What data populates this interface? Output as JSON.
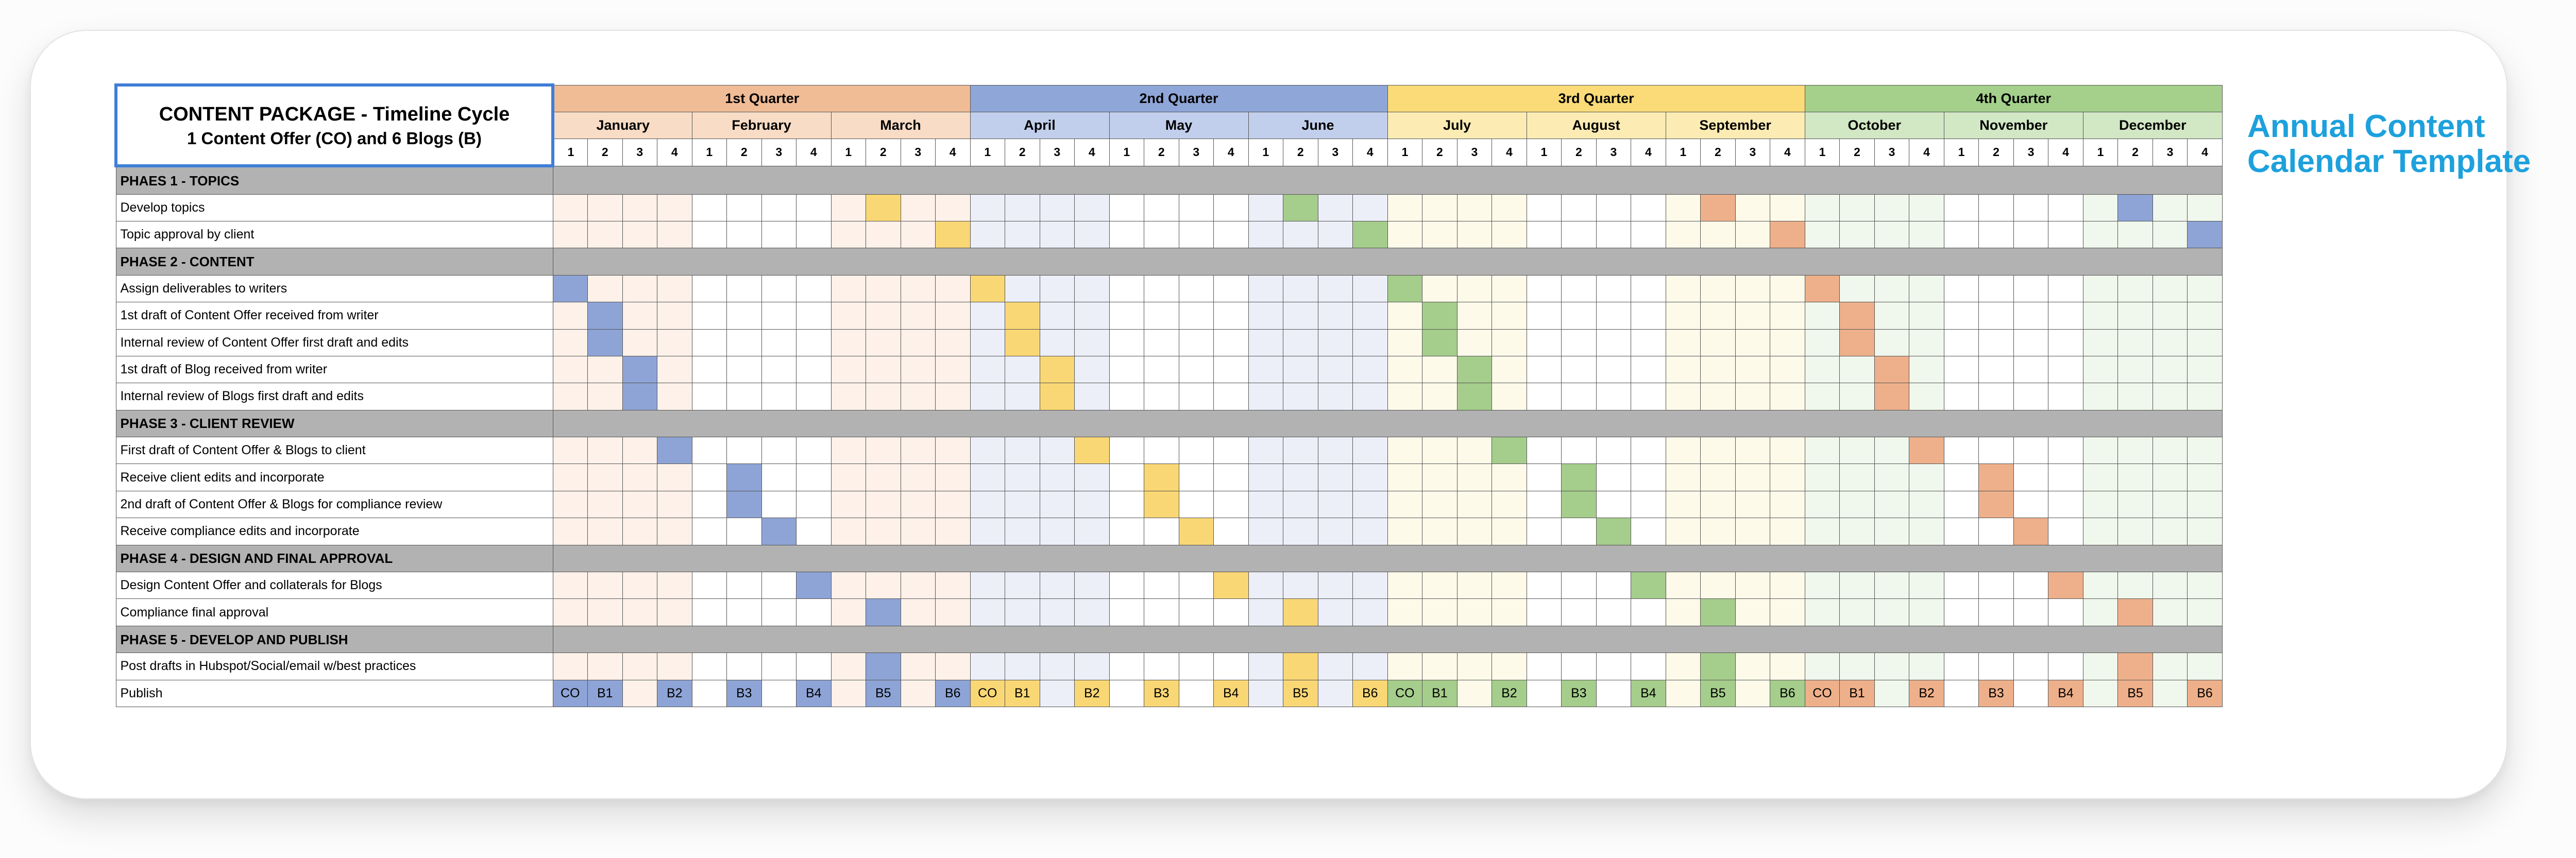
{
  "title_block": {
    "line1": "CONTENT PACKAGE - Timeline Cycle",
    "line2": "1 Content Offer (CO) and 6 Blogs (B)"
  },
  "side_title": {
    "line1": "Annual Content",
    "line2": "Calendar Template"
  },
  "week_labels": [
    "1",
    "2",
    "3",
    "4"
  ],
  "quarters": [
    {
      "label": "1st Quarter",
      "hdr_color": "#f0bc96",
      "month_color": "#f8dcc6",
      "band_color": "#fdf1e9",
      "accent": "#8ea4d6"
    },
    {
      "label": "2nd Quarter",
      "hdr_color": "#8fa6d8",
      "month_color": "#c2cfec",
      "band_color": "#eceff8",
      "accent": "#f9d774"
    },
    {
      "label": "3rd Quarter",
      "hdr_color": "#fadb78",
      "month_color": "#fcecb4",
      "band_color": "#fefaea",
      "accent": "#a5cd8b"
    },
    {
      "label": "4th Quarter",
      "hdr_color": "#a4d08c",
      "month_color": "#d2e7c4",
      "band_color": "#f0f7ec",
      "accent": "#eeb08a"
    }
  ],
  "months": [
    "January",
    "February",
    "March",
    "April",
    "May",
    "June",
    "July",
    "August",
    "September",
    "October",
    "November",
    "December"
  ],
  "rows": [
    {
      "type": "phase",
      "label": "PHAES 1 - TOPICS"
    },
    {
      "type": "task",
      "label": "Develop topics",
      "cells": [
        {
          "col": 9,
          "c": "#f9d774"
        },
        {
          "col": 21,
          "c": "#a5cd8b"
        },
        {
          "col": 33,
          "c": "#eeb08a"
        },
        {
          "col": 45,
          "c": "#8ea4d6"
        }
      ]
    },
    {
      "type": "task",
      "label": "Topic approval by client",
      "cells": [
        {
          "col": 11,
          "c": "#f9d774"
        },
        {
          "col": 23,
          "c": "#a5cd8b"
        },
        {
          "col": 35,
          "c": "#eeb08a"
        },
        {
          "col": 47,
          "c": "#8ea4d6"
        }
      ]
    },
    {
      "type": "phase",
      "label": "PHASE 2 - CONTENT"
    },
    {
      "type": "task",
      "label": "Assign deliverables to writers",
      "cells": [
        {
          "col": 0,
          "c": "#8ea4d6"
        },
        {
          "col": 12,
          "c": "#f9d774"
        },
        {
          "col": 24,
          "c": "#a5cd8b"
        },
        {
          "col": 36,
          "c": "#eeb08a"
        }
      ]
    },
    {
      "type": "task",
      "label": "1st draft of Content Offer received from writer",
      "cells": [
        {
          "col": 1,
          "c": "#8ea4d6"
        },
        {
          "col": 13,
          "c": "#f9d774"
        },
        {
          "col": 25,
          "c": "#a5cd8b"
        },
        {
          "col": 37,
          "c": "#eeb08a"
        }
      ]
    },
    {
      "type": "task",
      "label": "Internal review of Content Offer first draft and edits",
      "cells": [
        {
          "col": 1,
          "c": "#8ea4d6"
        },
        {
          "col": 13,
          "c": "#f9d774"
        },
        {
          "col": 25,
          "c": "#a5cd8b"
        },
        {
          "col": 37,
          "c": "#eeb08a"
        }
      ]
    },
    {
      "type": "task",
      "label": "1st draft of Blog received from writer",
      "cells": [
        {
          "col": 2,
          "c": "#8ea4d6"
        },
        {
          "col": 14,
          "c": "#f9d774"
        },
        {
          "col": 26,
          "c": "#a5cd8b"
        },
        {
          "col": 38,
          "c": "#eeb08a"
        }
      ]
    },
    {
      "type": "task",
      "label": "Internal review of Blogs first draft and edits",
      "cells": [
        {
          "col": 2,
          "c": "#8ea4d6"
        },
        {
          "col": 14,
          "c": "#f9d774"
        },
        {
          "col": 26,
          "c": "#a5cd8b"
        },
        {
          "col": 38,
          "c": "#eeb08a"
        }
      ]
    },
    {
      "type": "phase",
      "label": "PHASE 3 - CLIENT REVIEW"
    },
    {
      "type": "task",
      "label": "First draft of Content Offer & Blogs to client",
      "cells": [
        {
          "col": 3,
          "c": "#8ea4d6"
        },
        {
          "col": 15,
          "c": "#f9d774"
        },
        {
          "col": 27,
          "c": "#a5cd8b"
        },
        {
          "col": 39,
          "c": "#eeb08a"
        }
      ]
    },
    {
      "type": "task",
      "label": "Receive client edits and incorporate",
      "cells": [
        {
          "col": 5,
          "c": "#8ea4d6"
        },
        {
          "col": 17,
          "c": "#f9d774"
        },
        {
          "col": 29,
          "c": "#a5cd8b"
        },
        {
          "col": 41,
          "c": "#eeb08a"
        }
      ]
    },
    {
      "type": "task",
      "label": "2nd draft of Content Offer & Blogs for compliance review",
      "cells": [
        {
          "col": 5,
          "c": "#8ea4d6"
        },
        {
          "col": 17,
          "c": "#f9d774"
        },
        {
          "col": 29,
          "c": "#a5cd8b"
        },
        {
          "col": 41,
          "c": "#eeb08a"
        }
      ]
    },
    {
      "type": "task",
      "label": "Receive compliance edits and incorporate",
      "cells": [
        {
          "col": 6,
          "c": "#8ea4d6"
        },
        {
          "col": 18,
          "c": "#f9d774"
        },
        {
          "col": 30,
          "c": "#a5cd8b"
        },
        {
          "col": 42,
          "c": "#eeb08a"
        }
      ]
    },
    {
      "type": "phase",
      "label": "PHASE 4 - DESIGN AND FINAL APPROVAL"
    },
    {
      "type": "task",
      "label": "Design Content Offer and collaterals for Blogs",
      "cells": [
        {
          "col": 7,
          "c": "#8ea4d6"
        },
        {
          "col": 19,
          "c": "#f9d774"
        },
        {
          "col": 31,
          "c": "#a5cd8b"
        },
        {
          "col": 43,
          "c": "#eeb08a"
        }
      ]
    },
    {
      "type": "task",
      "label": "Compliance final approval",
      "cells": [
        {
          "col": 9,
          "c": "#8ea4d6"
        },
        {
          "col": 21,
          "c": "#f9d774"
        },
        {
          "col": 33,
          "c": "#a5cd8b"
        },
        {
          "col": 45,
          "c": "#eeb08a"
        }
      ]
    },
    {
      "type": "phase",
      "label": "PHASE 5 - DEVELOP AND PUBLISH"
    },
    {
      "type": "task",
      "label": "Post drafts in Hubspot/Social/email w/best practices",
      "cells": [
        {
          "col": 9,
          "c": "#8ea4d6"
        },
        {
          "col": 21,
          "c": "#f9d774"
        },
        {
          "col": 33,
          "c": "#a5cd8b"
        },
        {
          "col": 45,
          "c": "#eeb08a"
        }
      ]
    },
    {
      "type": "publish",
      "label": "Publish",
      "cells": [
        {
          "col": 0,
          "t": "CO"
        },
        {
          "col": 1,
          "t": "B1"
        },
        {
          "col": 3,
          "t": "B2"
        },
        {
          "col": 5,
          "t": "B3"
        },
        {
          "col": 7,
          "t": "B4"
        },
        {
          "col": 9,
          "t": "B5"
        },
        {
          "col": 11,
          "t": "B6"
        },
        {
          "col": 12,
          "t": "CO"
        },
        {
          "col": 13,
          "t": "B1"
        },
        {
          "col": 15,
          "t": "B2"
        },
        {
          "col": 17,
          "t": "B3"
        },
        {
          "col": 19,
          "t": "B4"
        },
        {
          "col": 21,
          "t": "B5"
        },
        {
          "col": 23,
          "t": "B6"
        },
        {
          "col": 24,
          "t": "CO"
        },
        {
          "col": 25,
          "t": "B1"
        },
        {
          "col": 27,
          "t": "B2"
        },
        {
          "col": 29,
          "t": "B3"
        },
        {
          "col": 31,
          "t": "B4"
        },
        {
          "col": 33,
          "t": "B5"
        },
        {
          "col": 35,
          "t": "B6"
        },
        {
          "col": 36,
          "t": "CO"
        },
        {
          "col": 37,
          "t": "B1"
        },
        {
          "col": 39,
          "t": "B2"
        },
        {
          "col": 41,
          "t": "B3"
        },
        {
          "col": 43,
          "t": "B4"
        },
        {
          "col": 45,
          "t": "B5"
        },
        {
          "col": 47,
          "t": "B6"
        }
      ]
    }
  ]
}
